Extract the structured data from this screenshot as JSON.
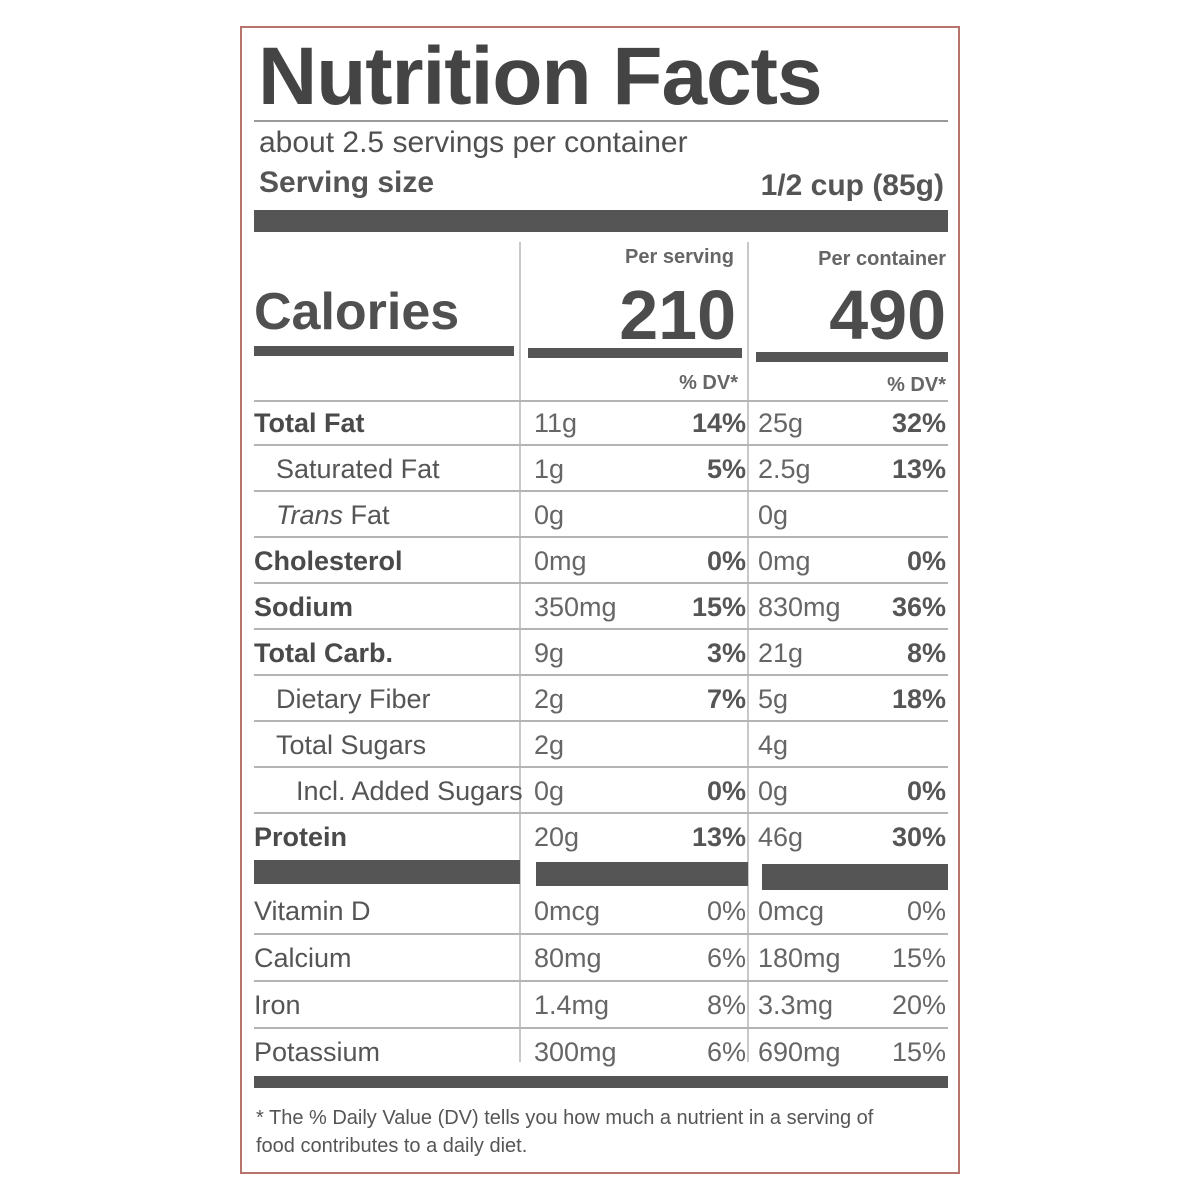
{
  "title": "Nutrition Facts",
  "servings_text": "about 2.5 servings per container",
  "serving_size_label": "Serving size",
  "serving_size_value": "1/2 cup (85g)",
  "per_serving_label": "Per serving",
  "per_container_label": "Per container",
  "calories_label": "Calories",
  "calories_serving": "210",
  "calories_container": "490",
  "dv_header": "% DV*",
  "nutrients": [
    {
      "name": "Total Fat",
      "s_amt": "11g",
      "s_pct": "14%",
      "c_amt": "25g",
      "c_pct": "32%"
    },
    {
      "name": "Saturated Fat",
      "s_amt": "1g",
      "s_pct": "5%",
      "c_amt": "2.5g",
      "c_pct": "13%"
    },
    {
      "name_italic": "Trans",
      "name_rest": " Fat",
      "s_amt": "0g",
      "s_pct": "",
      "c_amt": "0g",
      "c_pct": ""
    },
    {
      "name": "Cholesterol",
      "s_amt": "0mg",
      "s_pct": "0%",
      "c_amt": "0mg",
      "c_pct": "0%"
    },
    {
      "name": "Sodium",
      "s_amt": "350mg",
      "s_pct": "15%",
      "c_amt": "830mg",
      "c_pct": "36%"
    },
    {
      "name": "Total Carb.",
      "s_amt": "9g",
      "s_pct": "3%",
      "c_amt": "21g",
      "c_pct": "8%"
    },
    {
      "name": "Dietary Fiber",
      "s_amt": "2g",
      "s_pct": "7%",
      "c_amt": "5g",
      "c_pct": "18%"
    },
    {
      "name": "Total Sugars",
      "s_amt": "2g",
      "s_pct": "",
      "c_amt": "4g",
      "c_pct": ""
    },
    {
      "name": "Incl. Added Sugars",
      "s_amt": "0g",
      "s_pct": "0%",
      "c_amt": "0g",
      "c_pct": "0%"
    },
    {
      "name": "Protein",
      "s_amt": "20g",
      "s_pct": "13%",
      "c_amt": "46g",
      "c_pct": "30%"
    }
  ],
  "vitamins": [
    {
      "name": "Vitamin D",
      "s_amt": "0mcg",
      "s_pct": "0%",
      "c_amt": "0mcg",
      "c_pct": "0%"
    },
    {
      "name": "Calcium",
      "s_amt": "80mg",
      "s_pct": "6%",
      "c_amt": "180mg",
      "c_pct": "15%"
    },
    {
      "name": "Iron",
      "s_amt": "1.4mg",
      "s_pct": "8%",
      "c_amt": "3.3mg",
      "c_pct": "20%"
    },
    {
      "name": "Potassium",
      "s_amt": "300mg",
      "s_pct": "6%",
      "c_amt": "690mg",
      "c_pct": "15%"
    }
  ],
  "footnote": "* The % Daily Value (DV) tells you how much a nutrient in a serving of food contributes to a daily diet."
}
